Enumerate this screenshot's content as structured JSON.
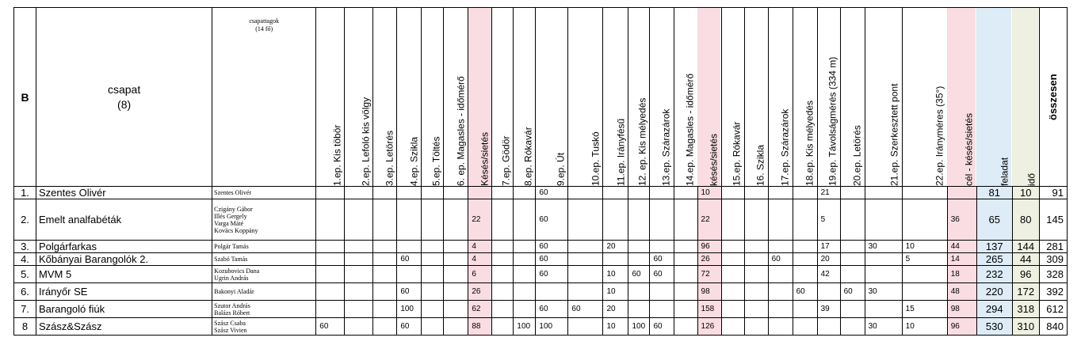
{
  "header": {
    "group": "B",
    "team_label": "csapat",
    "team_count": "(8)",
    "members_label": "csapattagok",
    "members_count": "(14 fő)",
    "columns": [
      "1.ep. Kis töbör",
      "2.ep. Lefoló kis völgy",
      "3.ep. Letörés",
      "4.ep. Szikla",
      "5.ep. Töltés",
      "6. ep. Magasles - időmérő",
      "Késés/sietés",
      "7.ep. Gödör",
      "8.ep. Rókavár",
      "9.ep. Út",
      "10.ep. Tuskó",
      "11.ep. Irányfésű",
      "12. ep. Kis mélyedés",
      "13.ep. Szárazárok",
      "14.ep. Magasles - időmérő",
      "késés/sietés",
      "15.ep. Rókavár",
      "16. Szikla",
      "17.ep. Szárazárok",
      "18.ep. Kis mélyedés",
      "19.ep. Távolságmérés (334 m)",
      "20.ep. Letörés",
      "21.ep. Szerkesztett pont",
      "22.ep. Irányméres (35°)",
      "cél - késés/sietés",
      "feladat",
      "idő"
    ],
    "total": "összesen"
  },
  "rows": [
    {
      "rank": "1.",
      "team": "Szentes Olivér",
      "members": [
        "Szentes Olivér"
      ],
      "cells": [
        "",
        "",
        "",
        "",
        "",
        "",
        "",
        "",
        "",
        "60",
        "",
        "",
        "",
        "",
        "",
        "10",
        "",
        "",
        "",
        "",
        "21",
        "",
        "",
        "",
        "",
        "81",
        "10"
      ],
      "total": "91"
    },
    {
      "rank": "2.",
      "team": "Emelt analfabéták",
      "members": [
        "Czigány Gábor",
        "Illés Gergely",
        "Varga Máté",
        "Kovács Koppány"
      ],
      "cells": [
        "",
        "",
        "",
        "",
        "",
        "",
        "22",
        "",
        "",
        "60",
        "",
        "",
        "",
        "",
        "",
        "22",
        "",
        "",
        "",
        "",
        "5",
        "",
        "",
        "",
        "36",
        "65",
        "80"
      ],
      "total": "145"
    },
    {
      "rank": "3.",
      "team": "Polgárfarkas",
      "members": [
        "Polgár Tamás"
      ],
      "cells": [
        "",
        "",
        "",
        "",
        "",
        "",
        "4",
        "",
        "",
        "60",
        "",
        "20",
        "",
        "",
        "",
        "96",
        "",
        "",
        "",
        "",
        "17",
        "",
        "30",
        "10",
        "44",
        "137",
        "144"
      ],
      "total": "281"
    },
    {
      "rank": "4.",
      "team": "Kőbányai Barangolók 2.",
      "members": [
        "Szabó Tamás"
      ],
      "cells": [
        "",
        "",
        "",
        "60",
        "",
        "",
        "4",
        "",
        "",
        "60",
        "",
        "",
        "",
        "60",
        "",
        "26",
        "",
        "",
        "60",
        "",
        "20",
        "",
        "",
        "5",
        "14",
        "265",
        "44"
      ],
      "total": "309"
    },
    {
      "rank": "5.",
      "team": "MVM 5",
      "members": [
        "Kozubovics Dana",
        "Ugrin András"
      ],
      "cells": [
        "",
        "",
        "",
        "",
        "",
        "",
        "6",
        "",
        "",
        "60",
        "",
        "10",
        "60",
        "60",
        "",
        "72",
        "",
        "",
        "",
        "",
        "42",
        "",
        "",
        "",
        "18",
        "232",
        "96"
      ],
      "total": "328"
    },
    {
      "rank": "6.",
      "team": "Irányőr SE",
      "members": [
        "Bakonyi Aladár"
      ],
      "cells": [
        "",
        "",
        "",
        "60",
        "",
        "",
        "26",
        "",
        "",
        "",
        "",
        "10",
        "",
        "",
        "",
        "98",
        "",
        "",
        "",
        "60",
        "",
        "60",
        "30",
        "",
        "48",
        "220",
        "172"
      ],
      "total": "392"
    },
    {
      "rank": "7.",
      "team": "Barangoló fiúk",
      "members": [
        "Szutor András",
        "Balázs Róbert"
      ],
      "cells": [
        "",
        "",
        "",
        "100",
        "",
        "",
        "62",
        "",
        "",
        "60",
        "60",
        "20",
        "",
        "",
        "",
        "158",
        "",
        "",
        "",
        "",
        "39",
        "",
        "",
        "15",
        "98",
        "294",
        "318"
      ],
      "total": "612"
    },
    {
      "rank": "8",
      "team": "Szász&Szász",
      "members": [
        "Szász Csaba",
        "Szász Vivien"
      ],
      "cells": [
        "60",
        "",
        "",
        "60",
        "",
        "",
        "88",
        "",
        "100",
        "100",
        "",
        "10",
        "100",
        "60",
        "",
        "126",
        "",
        "",
        "",
        "",
        "",
        "",
        "30",
        "10",
        "96",
        "530",
        "310"
      ],
      "total": "840"
    }
  ],
  "colors": {
    "pink": "#f9dde3",
    "blue": "#ddecf6",
    "green": "#eef1e1"
  }
}
